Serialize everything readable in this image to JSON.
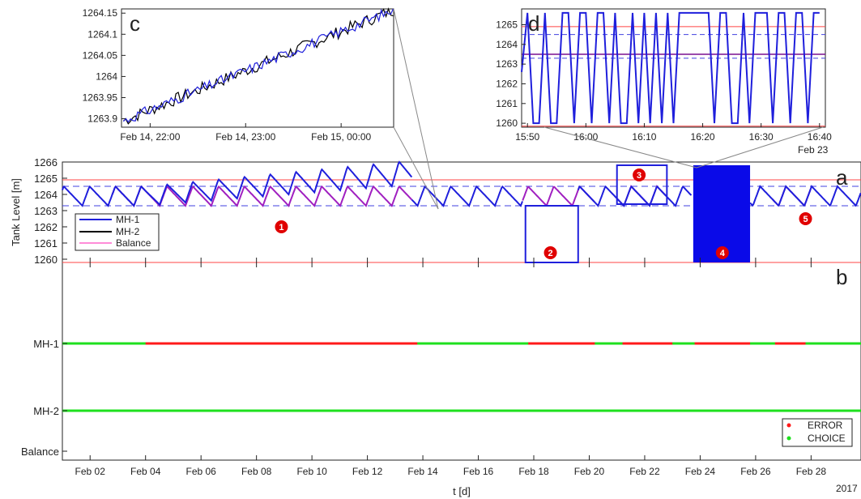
{
  "chart_data": [
    {
      "panel": "a",
      "type": "line",
      "xlabel": "t [d]",
      "ylabel": "Tank Level [m]",
      "ylim": [
        1259.8,
        1266
      ],
      "yticks": [
        "1260",
        "1261",
        "1262",
        "1263",
        "1264",
        "1265",
        "1266"
      ],
      "legend_placement": "bottom-left",
      "series": [
        {
          "name": "MH-1",
          "color": "#1f1fdc"
        },
        {
          "name": "MH-2",
          "color": "#000000"
        },
        {
          "name": "Balance",
          "color": "#ff66cc"
        }
      ],
      "reference_lines": {
        "red_solid": [
          1259.8,
          1264.9
        ],
        "blue_dashed": [
          1263.3,
          1264.5
        ]
      },
      "annotations": [
        "1",
        "2",
        "3",
        "4",
        "5"
      ],
      "grid": false
    },
    {
      "panel": "b",
      "type": "scatter",
      "xlabel": "t [d]",
      "yticks": [
        "MH-1",
        "MH-2",
        "Balance"
      ],
      "xticks": [
        "Feb 02",
        "Feb 04",
        "Feb 06",
        "Feb 08",
        "Feb 10",
        "Feb 12",
        "Feb 14",
        "Feb 16",
        "Feb 18",
        "Feb 20",
        "Feb 22",
        "Feb 24",
        "Feb 26",
        "Feb 28"
      ],
      "xlim_days": [
        1,
        29.8
      ],
      "year_label": "2017",
      "legend_placement": "bottom-right",
      "series": [
        {
          "name": "ERROR",
          "color": "#ff1a1a"
        },
        {
          "name": "CHOICE",
          "color": "#1ee01e"
        }
      ],
      "error_intervals_mh1_days": [
        [
          4.0,
          13.8
        ],
        [
          17.8,
          20.2
        ],
        [
          21.2,
          23.0
        ],
        [
          23.8,
          25.8
        ],
        [
          26.7,
          27.8
        ]
      ]
    },
    {
      "panel": "c",
      "type": "line",
      "xticks": [
        "Feb 14, 22:00",
        "Feb 14, 23:00",
        "Feb 15, 00:00"
      ],
      "yticks": [
        "1263.9",
        "1263.95",
        "1264",
        "1264.05",
        "1264.1",
        "1264.15"
      ],
      "ylim": [
        1263.88,
        1264.16
      ]
    },
    {
      "panel": "d",
      "type": "line",
      "xticks": [
        "15:50",
        "16:00",
        "16:10",
        "16:20",
        "16:30",
        "16:40"
      ],
      "x_sublabel": "Feb 23",
      "yticks": [
        "1260",
        "1261",
        "1262",
        "1263",
        "1264",
        "1265"
      ],
      "ylim": [
        1259.8,
        1265.8
      ]
    }
  ],
  "labels": {
    "panel_a": "a",
    "panel_b": "b",
    "panel_c": "c",
    "panel_d": "d"
  }
}
